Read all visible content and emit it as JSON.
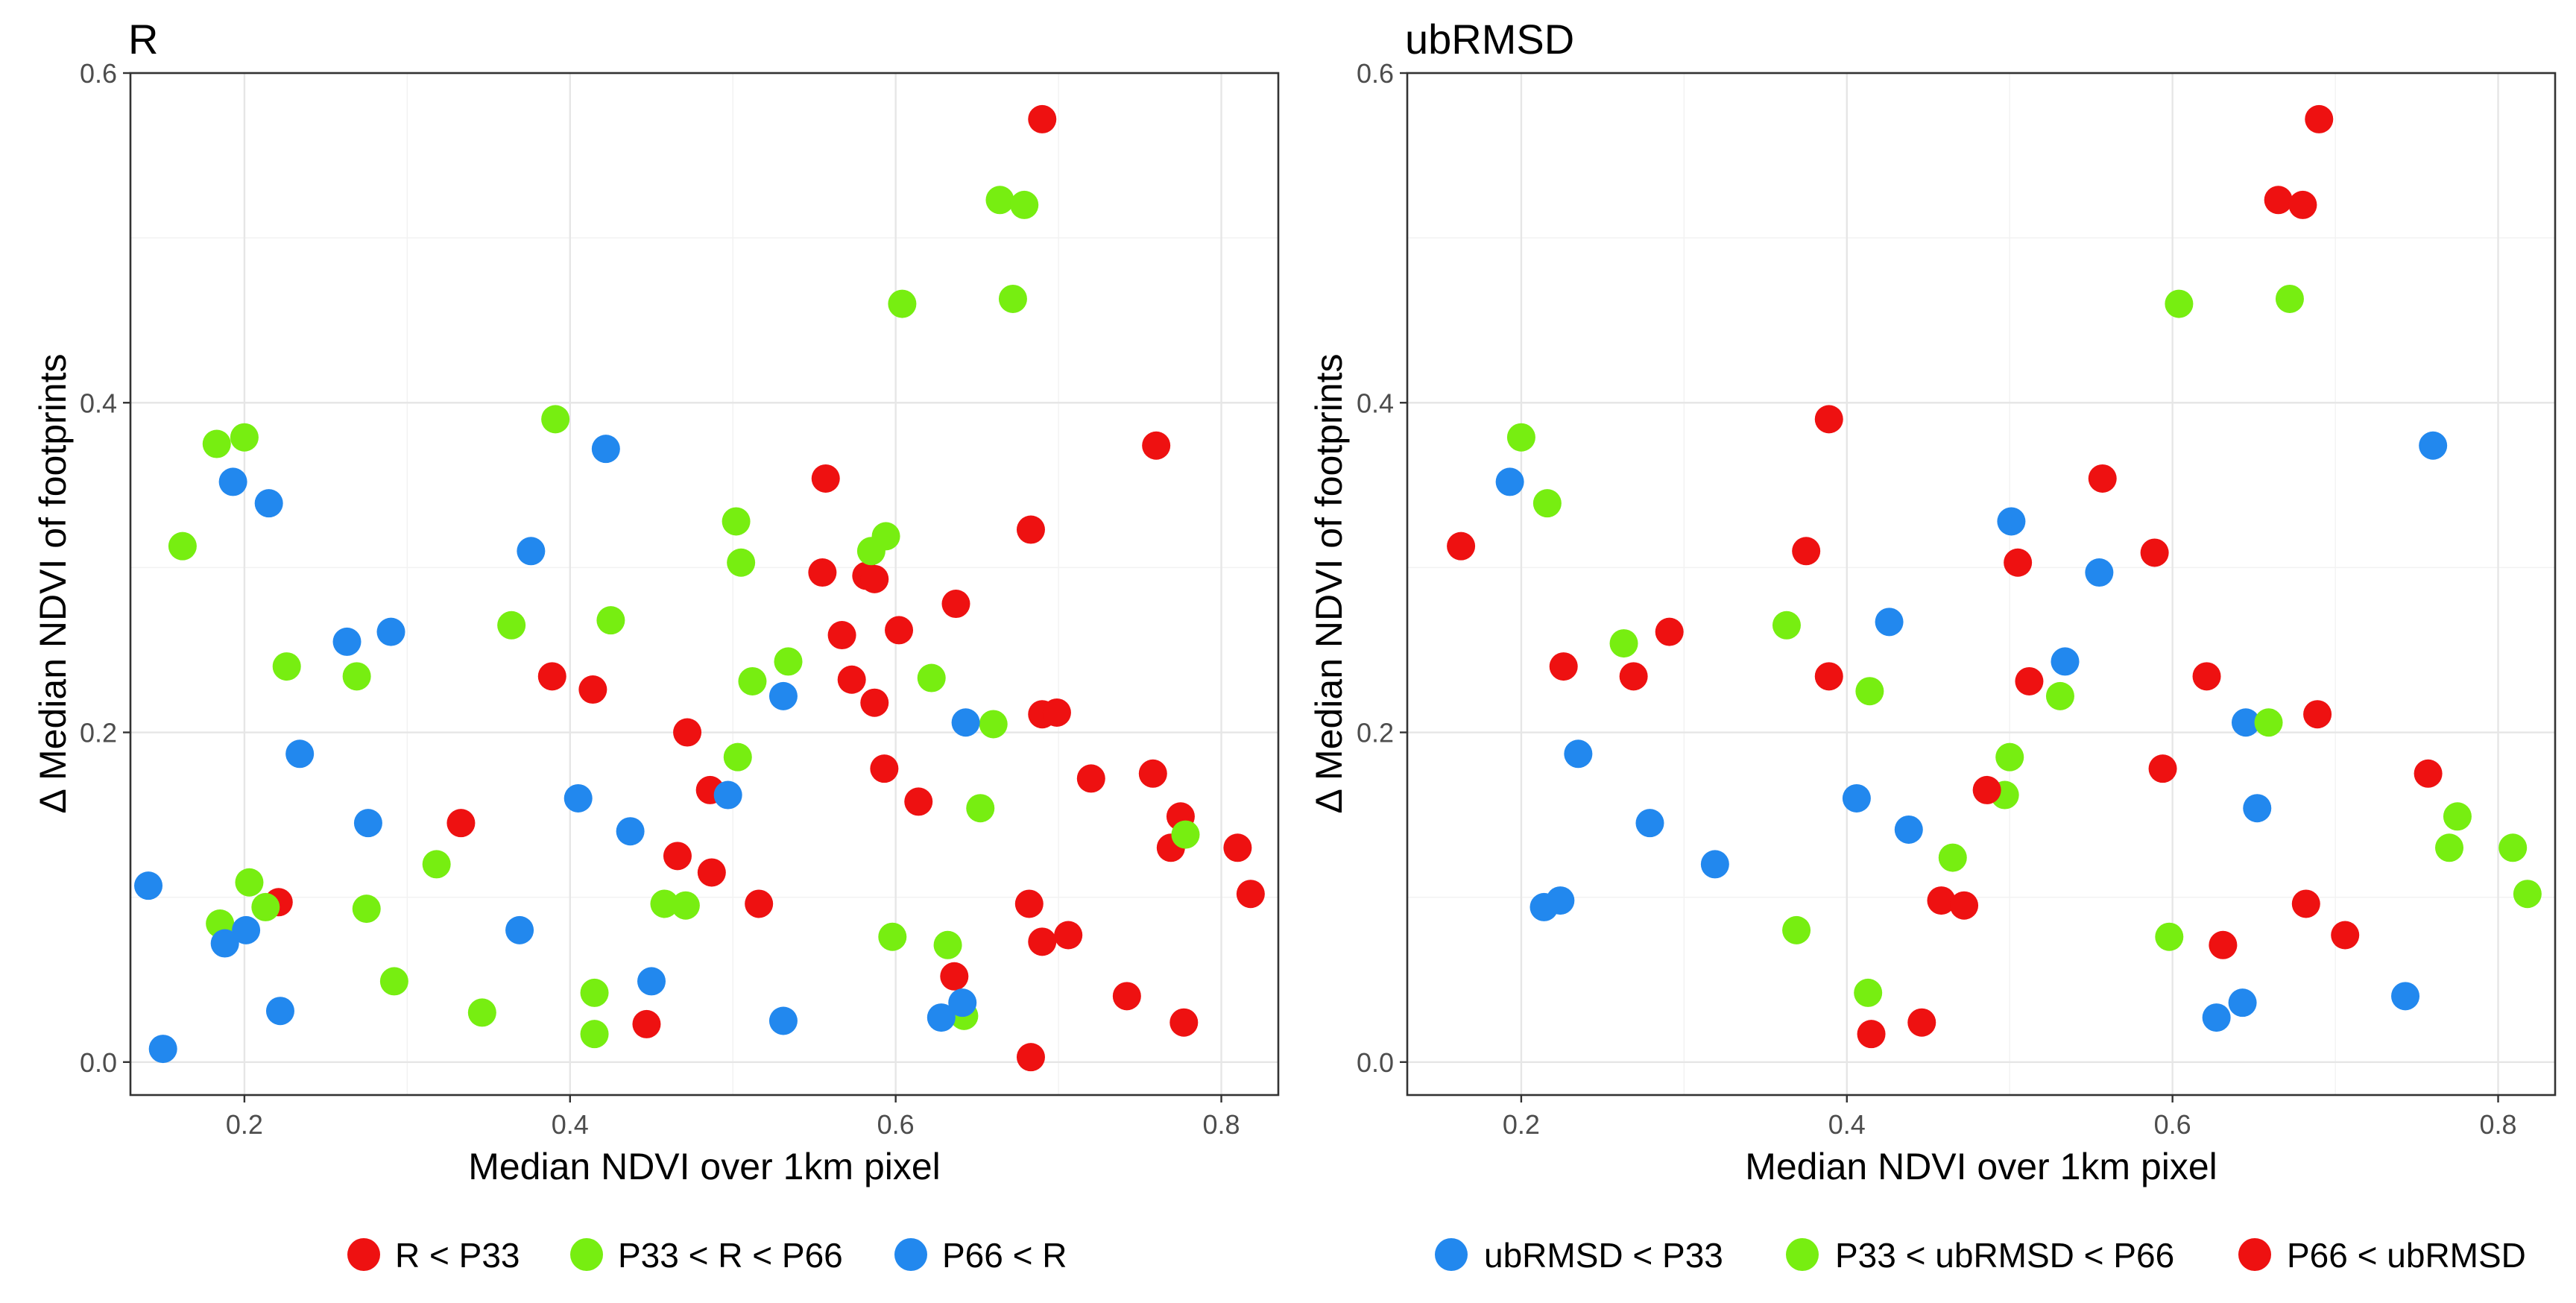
{
  "figure": {
    "xlabel": "Median NDVI over 1km pixel",
    "ylabel": "Δ Median NDVI of footprints",
    "x_ticks": [
      "0.2",
      "0.4",
      "0.6",
      "0.8"
    ],
    "y_ticks": [
      "0.0",
      "0.2",
      "0.4",
      "0.6"
    ],
    "xlim": [
      0.13,
      0.835
    ],
    "ylim": [
      -0.02,
      0.6
    ]
  },
  "colors": {
    "red": "#ee1111",
    "green": "#77ee11",
    "blue": "#2288ee"
  },
  "chart_data": [
    {
      "type": "scatter",
      "title": "R",
      "xlabel": "Median NDVI over 1km pixel",
      "ylabel": "Δ Median NDVI of footprints",
      "xlim": [
        0.13,
        0.835
      ],
      "ylim": [
        -0.02,
        0.6
      ],
      "grid": true,
      "legend_position": "bottom",
      "series": [
        {
          "name": "R < P33",
          "color": "#ee1111",
          "points": [
            [
              0.69,
              0.572
            ],
            [
              0.76,
              0.374
            ],
            [
              0.557,
              0.354
            ],
            [
              0.683,
              0.323
            ],
            [
              0.555,
              0.297
            ],
            [
              0.582,
              0.295
            ],
            [
              0.587,
              0.293
            ],
            [
              0.567,
              0.259
            ],
            [
              0.602,
              0.262
            ],
            [
              0.637,
              0.278
            ],
            [
              0.389,
              0.234
            ],
            [
              0.414,
              0.226
            ],
            [
              0.573,
              0.232
            ],
            [
              0.587,
              0.218
            ],
            [
              0.69,
              0.211
            ],
            [
              0.699,
              0.212
            ],
            [
              0.472,
              0.2
            ],
            [
              0.593,
              0.178
            ],
            [
              0.72,
              0.172
            ],
            [
              0.758,
              0.175
            ],
            [
              0.486,
              0.165
            ],
            [
              0.614,
              0.158
            ],
            [
              0.333,
              0.145
            ],
            [
              0.775,
              0.149
            ],
            [
              0.769,
              0.13
            ],
            [
              0.81,
              0.13
            ],
            [
              0.818,
              0.102
            ],
            [
              0.466,
              0.125
            ],
            [
              0.487,
              0.115
            ],
            [
              0.516,
              0.096
            ],
            [
              0.682,
              0.096
            ],
            [
              0.221,
              0.097
            ],
            [
              0.706,
              0.077
            ],
            [
              0.69,
              0.073
            ],
            [
              0.636,
              0.052
            ],
            [
              0.742,
              0.04
            ],
            [
              0.447,
              0.023
            ],
            [
              0.777,
              0.024
            ],
            [
              0.683,
              0.003
            ]
          ]
        },
        {
          "name": "P33 < R < P66",
          "color": "#77ee11",
          "points": [
            [
              0.664,
              0.523
            ],
            [
              0.679,
              0.52
            ],
            [
              0.672,
              0.463
            ],
            [
              0.604,
              0.46
            ],
            [
              0.183,
              0.375
            ],
            [
              0.2,
              0.379
            ],
            [
              0.391,
              0.39
            ],
            [
              0.162,
              0.313
            ],
            [
              0.502,
              0.328
            ],
            [
              0.594,
              0.319
            ],
            [
              0.585,
              0.31
            ],
            [
              0.505,
              0.303
            ],
            [
              0.364,
              0.265
            ],
            [
              0.425,
              0.268
            ],
            [
              0.226,
              0.24
            ],
            [
              0.534,
              0.243
            ],
            [
              0.269,
              0.234
            ],
            [
              0.512,
              0.231
            ],
            [
              0.622,
              0.233
            ],
            [
              0.66,
              0.205
            ],
            [
              0.503,
              0.185
            ],
            [
              0.652,
              0.154
            ],
            [
              0.778,
              0.138
            ],
            [
              0.318,
              0.12
            ],
            [
              0.203,
              0.109
            ],
            [
              0.213,
              0.094
            ],
            [
              0.185,
              0.084
            ],
            [
              0.275,
              0.093
            ],
            [
              0.458,
              0.096
            ],
            [
              0.471,
              0.095
            ],
            [
              0.598,
              0.076
            ],
            [
              0.632,
              0.071
            ],
            [
              0.292,
              0.049
            ],
            [
              0.415,
              0.042
            ],
            [
              0.346,
              0.03
            ],
            [
              0.642,
              0.028
            ],
            [
              0.415,
              0.017
            ]
          ]
        },
        {
          "name": "P66 < R",
          "color": "#2288ee",
          "points": [
            [
              0.422,
              0.372
            ],
            [
              0.193,
              0.352
            ],
            [
              0.215,
              0.339
            ],
            [
              0.376,
              0.31
            ],
            [
              0.263,
              0.255
            ],
            [
              0.29,
              0.261
            ],
            [
              0.531,
              0.222
            ],
            [
              0.643,
              0.206
            ],
            [
              0.234,
              0.187
            ],
            [
              0.405,
              0.16
            ],
            [
              0.497,
              0.162
            ],
            [
              0.276,
              0.145
            ],
            [
              0.437,
              0.14
            ],
            [
              0.141,
              0.107
            ],
            [
              0.201,
              0.08
            ],
            [
              0.188,
              0.072
            ],
            [
              0.369,
              0.08
            ],
            [
              0.45,
              0.049
            ],
            [
              0.641,
              0.036
            ],
            [
              0.222,
              0.031
            ],
            [
              0.628,
              0.027
            ],
            [
              0.531,
              0.025
            ],
            [
              0.15,
              0.008
            ]
          ]
        }
      ]
    },
    {
      "type": "scatter",
      "title": "ubRMSD",
      "xlabel": "Median NDVI over 1km pixel",
      "ylabel": "Δ Median NDVI of footprints",
      "xlim": [
        0.13,
        0.835
      ],
      "ylim": [
        -0.02,
        0.6
      ],
      "grid": true,
      "legend_position": "bottom",
      "series": [
        {
          "name": "ubRMSD < P33",
          "color": "#2288ee",
          "points": [
            [
              0.76,
              0.374
            ],
            [
              0.193,
              0.352
            ],
            [
              0.501,
              0.328
            ],
            [
              0.555,
              0.297
            ],
            [
              0.426,
              0.267
            ],
            [
              0.534,
              0.243
            ],
            [
              0.645,
              0.206
            ],
            [
              0.235,
              0.187
            ],
            [
              0.406,
              0.16
            ],
            [
              0.652,
              0.154
            ],
            [
              0.279,
              0.145
            ],
            [
              0.438,
              0.141
            ],
            [
              0.319,
              0.12
            ],
            [
              0.224,
              0.098
            ],
            [
              0.214,
              0.094
            ],
            [
              0.643,
              0.036
            ],
            [
              0.743,
              0.04
            ],
            [
              0.627,
              0.027
            ]
          ]
        },
        {
          "name": "P33 < ubRMSD < P66",
          "color": "#77ee11",
          "points": [
            [
              0.672,
              0.463
            ],
            [
              0.604,
              0.46
            ],
            [
              0.2,
              0.379
            ],
            [
              0.216,
              0.339
            ],
            [
              0.263,
              0.254
            ],
            [
              0.363,
              0.265
            ],
            [
              0.414,
              0.225
            ],
            [
              0.531,
              0.222
            ],
            [
              0.659,
              0.206
            ],
            [
              0.5,
              0.185
            ],
            [
              0.497,
              0.162
            ],
            [
              0.775,
              0.149
            ],
            [
              0.809,
              0.13
            ],
            [
              0.77,
              0.13
            ],
            [
              0.818,
              0.102
            ],
            [
              0.465,
              0.124
            ],
            [
              0.369,
              0.08
            ],
            [
              0.598,
              0.076
            ],
            [
              0.413,
              0.042
            ]
          ]
        },
        {
          "name": "P66 < ubRMSD",
          "color": "#ee1111",
          "points": [
            [
              0.69,
              0.572
            ],
            [
              0.665,
              0.523
            ],
            [
              0.68,
              0.52
            ],
            [
              0.389,
              0.39
            ],
            [
              0.557,
              0.354
            ],
            [
              0.163,
              0.313
            ],
            [
              0.375,
              0.31
            ],
            [
              0.589,
              0.309
            ],
            [
              0.505,
              0.303
            ],
            [
              0.291,
              0.261
            ],
            [
              0.226,
              0.24
            ],
            [
              0.269,
              0.234
            ],
            [
              0.389,
              0.234
            ],
            [
              0.512,
              0.231
            ],
            [
              0.621,
              0.234
            ],
            [
              0.689,
              0.211
            ],
            [
              0.594,
              0.178
            ],
            [
              0.757,
              0.175
            ],
            [
              0.486,
              0.165
            ],
            [
              0.458,
              0.098
            ],
            [
              0.472,
              0.095
            ],
            [
              0.682,
              0.096
            ],
            [
              0.706,
              0.077
            ],
            [
              0.631,
              0.071
            ],
            [
              0.446,
              0.024
            ],
            [
              0.415,
              0.017
            ]
          ]
        }
      ]
    }
  ]
}
